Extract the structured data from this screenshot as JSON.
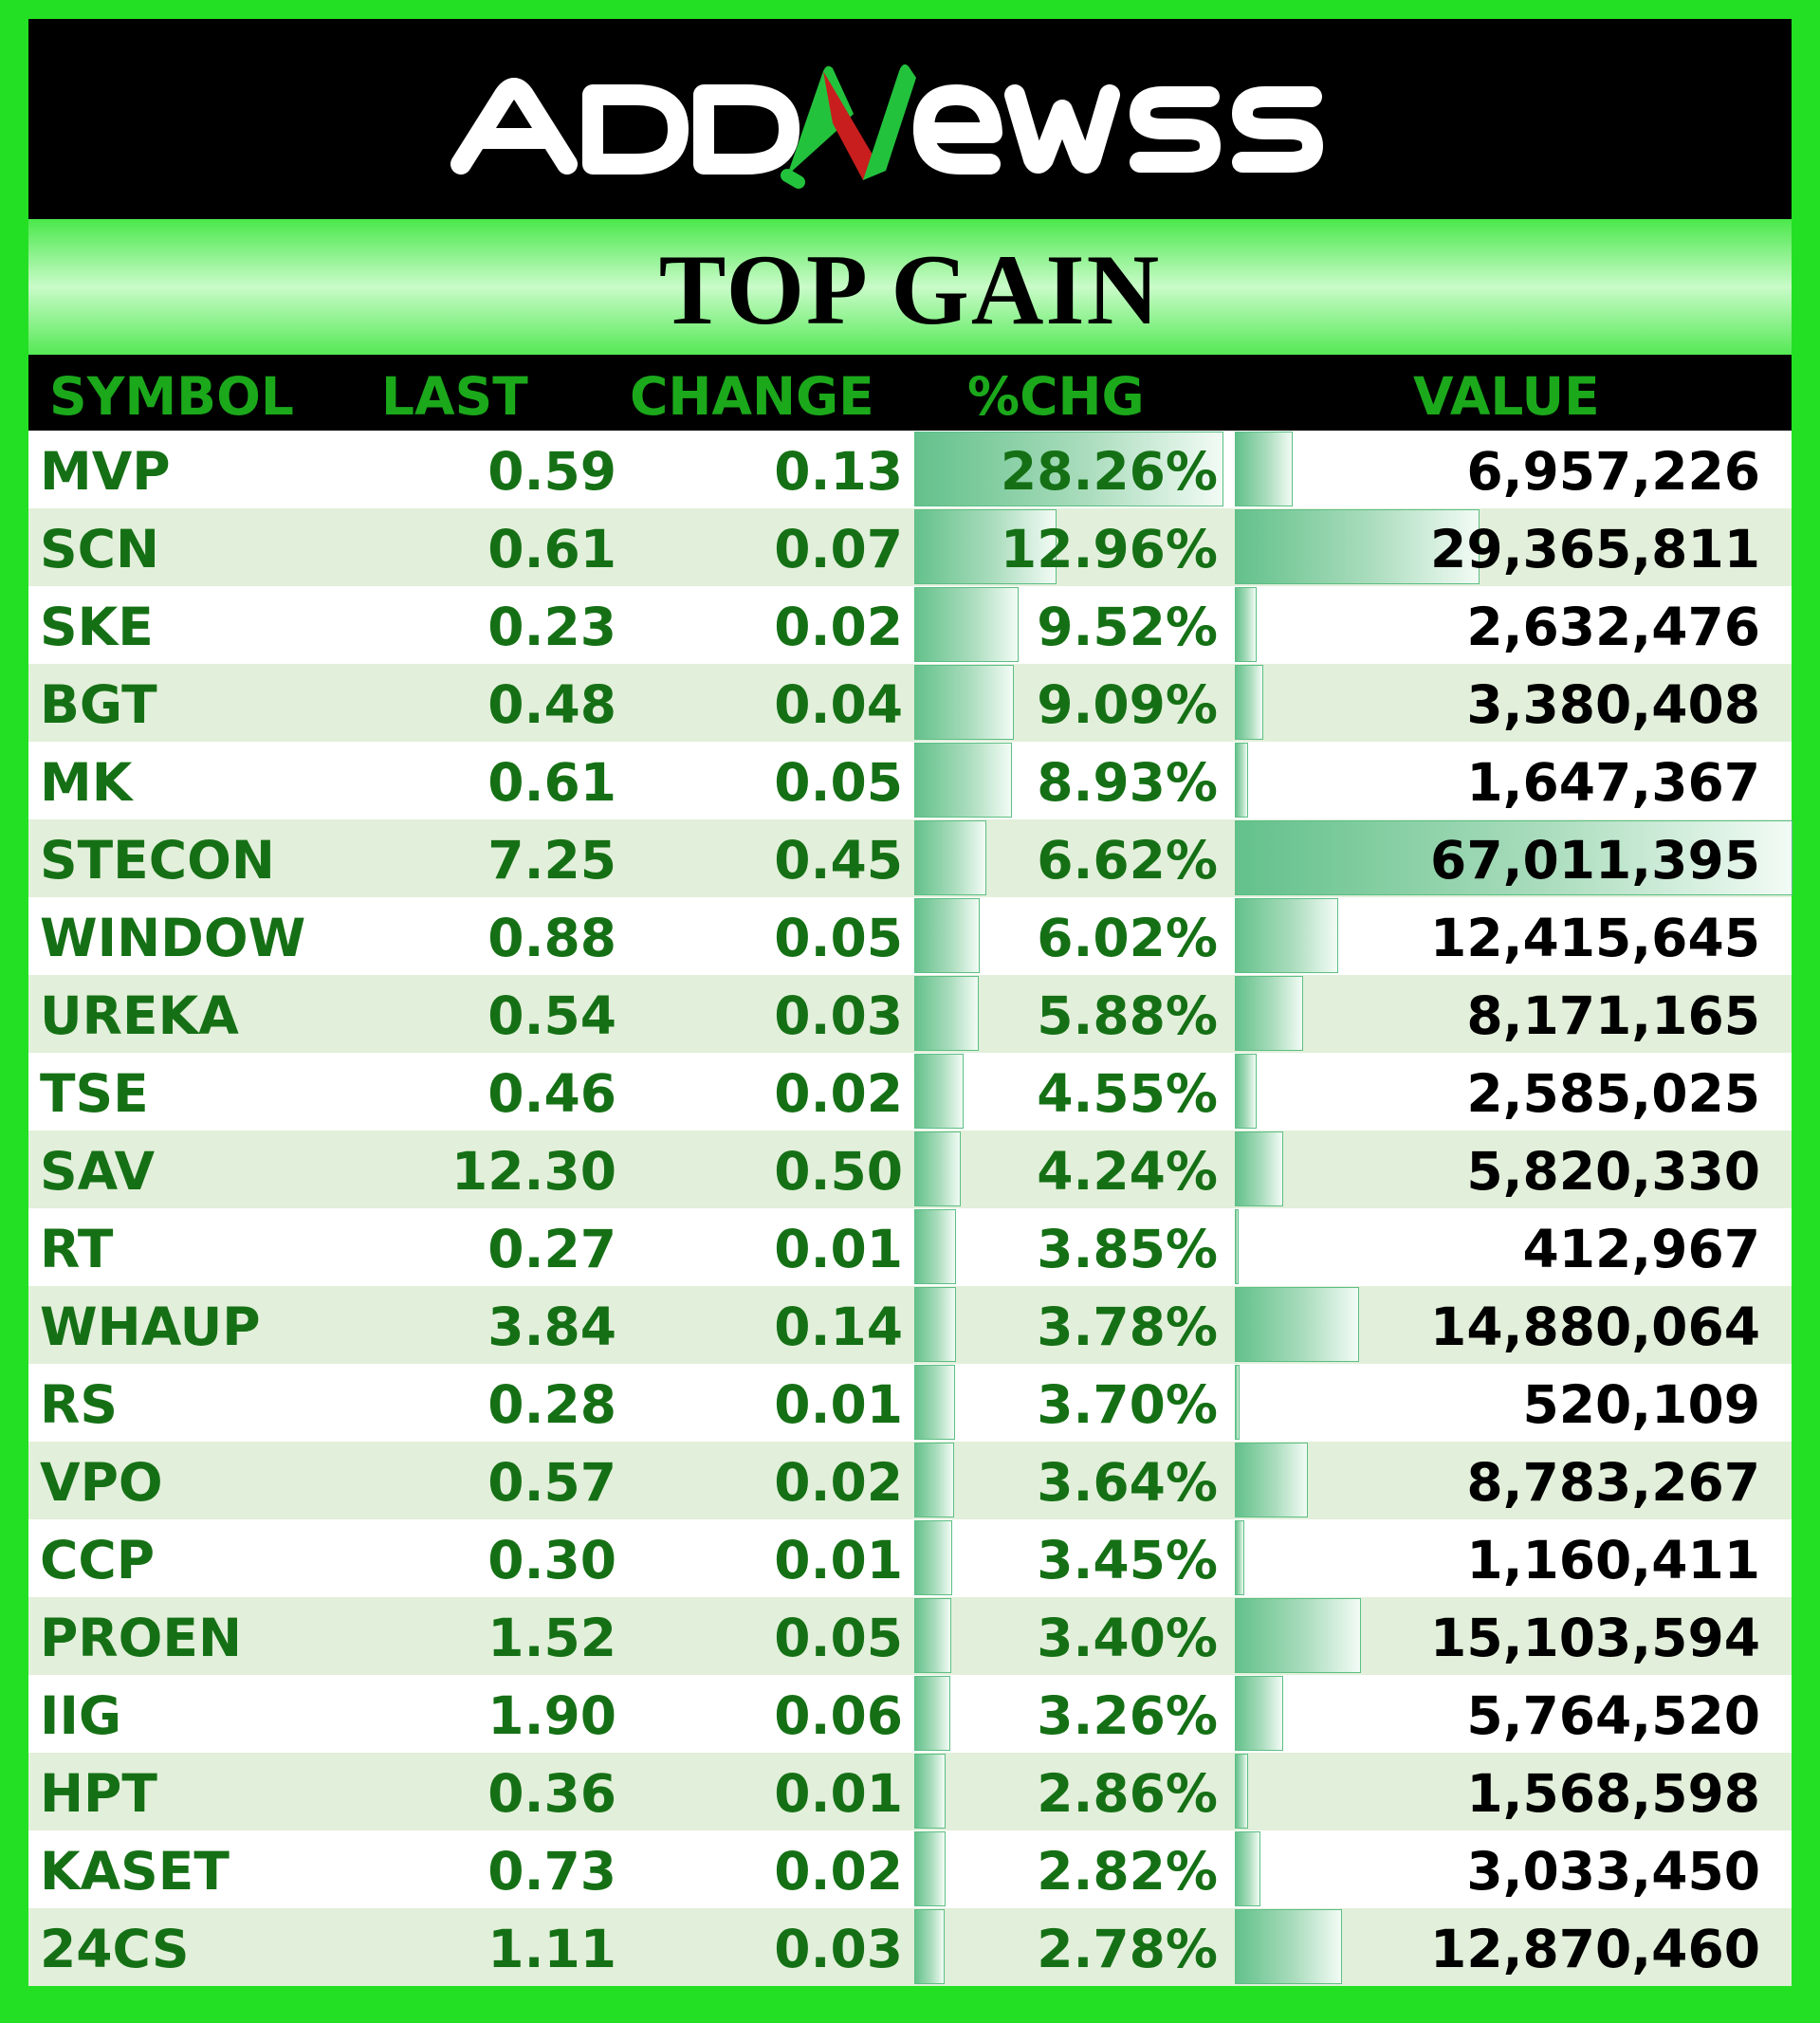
{
  "brand": {
    "logo_text": "ADDNewss",
    "colors": {
      "outer_frame": "#24e024",
      "logo_bar": "#000000",
      "text_green": "#157015",
      "header_green": "#1ba81b",
      "n_red": "#d42020",
      "n_green": "#23c23d",
      "databar": "#63c18b",
      "row_alt": "#e2efda"
    }
  },
  "banner": {
    "title": "TOP GAIN"
  },
  "table": {
    "headers": {
      "symbol": "SYMBOL",
      "last": "LAST",
      "change": "CHANGE",
      "pct": "%CHG",
      "value": "VALUE"
    },
    "rows": [
      {
        "symbol": "MVP",
        "last": "0.59",
        "change": "0.13",
        "pct": "28.26%",
        "value": "6,957,226",
        "pct_num": 28.26,
        "value_num": 6957226
      },
      {
        "symbol": "SCN",
        "last": "0.61",
        "change": "0.07",
        "pct": "12.96%",
        "value": "29,365,811",
        "pct_num": 12.96,
        "value_num": 29365811
      },
      {
        "symbol": "SKE",
        "last": "0.23",
        "change": "0.02",
        "pct": "9.52%",
        "value": "2,632,476",
        "pct_num": 9.52,
        "value_num": 2632476
      },
      {
        "symbol": "BGT",
        "last": "0.48",
        "change": "0.04",
        "pct": "9.09%",
        "value": "3,380,408",
        "pct_num": 9.09,
        "value_num": 3380408
      },
      {
        "symbol": "MK",
        "last": "0.61",
        "change": "0.05",
        "pct": "8.93%",
        "value": "1,647,367",
        "pct_num": 8.93,
        "value_num": 1647367
      },
      {
        "symbol": "STECON",
        "last": "7.25",
        "change": "0.45",
        "pct": "6.62%",
        "value": "67,011,395",
        "pct_num": 6.62,
        "value_num": 67011395
      },
      {
        "symbol": "WINDOW",
        "last": "0.88",
        "change": "0.05",
        "pct": "6.02%",
        "value": "12,415,645",
        "pct_num": 6.02,
        "value_num": 12415645
      },
      {
        "symbol": "UREKA",
        "last": "0.54",
        "change": "0.03",
        "pct": "5.88%",
        "value": "8,171,165",
        "pct_num": 5.88,
        "value_num": 8171165
      },
      {
        "symbol": "TSE",
        "last": "0.46",
        "change": "0.02",
        "pct": "4.55%",
        "value": "2,585,025",
        "pct_num": 4.55,
        "value_num": 2585025
      },
      {
        "symbol": "SAV",
        "last": "12.30",
        "change": "0.50",
        "pct": "4.24%",
        "value": "5,820,330",
        "pct_num": 4.24,
        "value_num": 5820330
      },
      {
        "symbol": "RT",
        "last": "0.27",
        "change": "0.01",
        "pct": "3.85%",
        "value": "412,967",
        "pct_num": 3.85,
        "value_num": 412967
      },
      {
        "symbol": "WHAUP",
        "last": "3.84",
        "change": "0.14",
        "pct": "3.78%",
        "value": "14,880,064",
        "pct_num": 3.78,
        "value_num": 14880064
      },
      {
        "symbol": "RS",
        "last": "0.28",
        "change": "0.01",
        "pct": "3.70%",
        "value": "520,109",
        "pct_num": 3.7,
        "value_num": 520109
      },
      {
        "symbol": "VPO",
        "last": "0.57",
        "change": "0.02",
        "pct": "3.64%",
        "value": "8,783,267",
        "pct_num": 3.64,
        "value_num": 8783267
      },
      {
        "symbol": "CCP",
        "last": "0.30",
        "change": "0.01",
        "pct": "3.45%",
        "value": "1,160,411",
        "pct_num": 3.45,
        "value_num": 1160411
      },
      {
        "symbol": "PROEN",
        "last": "1.52",
        "change": "0.05",
        "pct": "3.40%",
        "value": "15,103,594",
        "pct_num": 3.4,
        "value_num": 15103594
      },
      {
        "symbol": "IIG",
        "last": "1.90",
        "change": "0.06",
        "pct": "3.26%",
        "value": "5,764,520",
        "pct_num": 3.26,
        "value_num": 5764520
      },
      {
        "symbol": "HPT",
        "last": "0.36",
        "change": "0.01",
        "pct": "2.86%",
        "value": "1,568,598",
        "pct_num": 2.86,
        "value_num": 1568598
      },
      {
        "symbol": "KASET",
        "last": "0.73",
        "change": "0.02",
        "pct": "2.82%",
        "value": "3,033,450",
        "pct_num": 2.82,
        "value_num": 3033450
      },
      {
        "symbol": "24CS",
        "last": "1.11",
        "change": "0.03",
        "pct": "2.78%",
        "value": "12,870,460",
        "pct_num": 2.78,
        "value_num": 12870460
      }
    ]
  }
}
